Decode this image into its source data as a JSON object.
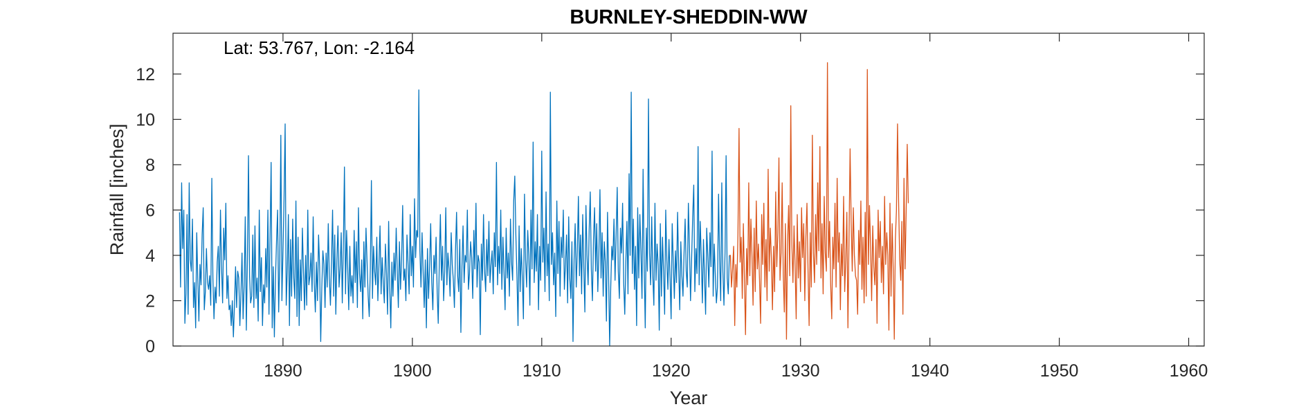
{
  "chart_data": {
    "type": "line",
    "title": "BURNLEY-SHEDDIN-WW",
    "xlabel": "Year",
    "ylabel": "Rainfall [inches]",
    "annotation": "Lat: 53.767, Lon: -2.164",
    "xlim": [
      1881.5,
      1961.2
    ],
    "ylim": [
      0,
      13.8
    ],
    "xticks": [
      1890,
      1900,
      1910,
      1920,
      1930,
      1940,
      1950,
      1960
    ],
    "yticks": [
      0,
      2,
      4,
      6,
      8,
      10,
      12
    ],
    "grid": false,
    "box": true,
    "x_start": 1882.0,
    "x_step": 0.08333,
    "series": [
      {
        "color": "#0072BD",
        "values": [
          5.9,
          2.6,
          7.2,
          4.3,
          6.0,
          1.0,
          2.3,
          5.8,
          1.4,
          7.2,
          3.8,
          3.3,
          5.6,
          1.7,
          2.8,
          0.8,
          5.0,
          2.9,
          1.1,
          3.6,
          2.7,
          4.9,
          6.1,
          1.6,
          2.4,
          4.3,
          2.8,
          2.5,
          3.1,
          1.8,
          7.4,
          3.0,
          1.2,
          2.6,
          1.9,
          3.7,
          4.4,
          2.2,
          6.0,
          3.5,
          1.9,
          5.2,
          3.8,
          6.3,
          2.1,
          3.1,
          1.6,
          1.8,
          0.9,
          2.0,
          0.4,
          1.8,
          3.5,
          1.7,
          3.3,
          3.0,
          0.9,
          2.3,
          4.1,
          1.2,
          2.7,
          5.7,
          0.7,
          3.8,
          8.4,
          3.1,
          1.9,
          2.2,
          4.9,
          1.7,
          5.3,
          2.1,
          3.0,
          1.1,
          6.0,
          2.4,
          3.9,
          0.9,
          2.7,
          1.9,
          4.3,
          2.6,
          6.0,
          1.4,
          4.8,
          8.1,
          0.8,
          3.5,
          0.4,
          2.9,
          4.6,
          6.0,
          1.5,
          3.8,
          9.3,
          2.0,
          4.2,
          6.5,
          9.8,
          1.8,
          3.3,
          5.8,
          0.9,
          4.7,
          2.2,
          5.6,
          3.0,
          2.1,
          6.4,
          1.3,
          4.8,
          0.9,
          3.8,
          2.0,
          5.2,
          3.3,
          1.6,
          4.0,
          1.8,
          6.0,
          2.7,
          3.1,
          4.1,
          2.4,
          5.7,
          2.8,
          1.5,
          3.7,
          2.0,
          4.9,
          3.5,
          0.2,
          2.6,
          4.2,
          3.6,
          1.7,
          4.1,
          2.6,
          5.4,
          3.0,
          1.8,
          3.7,
          6.0,
          2.2,
          4.9,
          1.4,
          3.8,
          5.3,
          2.6,
          3.4,
          5.0,
          1.9,
          4.4,
          7.9,
          2.3,
          5.1,
          3.5,
          1.6,
          4.4,
          2.2,
          3.1,
          1.9,
          5.1,
          2.8,
          4.6,
          1.7,
          6.1,
          3.2,
          2.4,
          3.8,
          1.2,
          4.6,
          2.6,
          5.2,
          3.7,
          2.2,
          1.3,
          3.4,
          7.3,
          2.1,
          4.4,
          3.3,
          2.7,
          4.8,
          2.0,
          3.6,
          5.3,
          2.3,
          3.9,
          2.8,
          1.9,
          4.5,
          3.2,
          1.4,
          5.5,
          2.6,
          0.8,
          3.7,
          2.2,
          4.1,
          2.9,
          5.2,
          3.3,
          1.7,
          4.6,
          2.5,
          3.8,
          6.2,
          2.9,
          3.4,
          2.0,
          4.9,
          3.6,
          2.3,
          5.8,
          3.1,
          4.4,
          2.6,
          6.5,
          3.9,
          5.1,
          4.8,
          11.3,
          4.2,
          2.6,
          5.0,
          3.3,
          1.7,
          3.8,
          0.8,
          4.3,
          2.1,
          3.5,
          5.4,
          2.8,
          1.6,
          4.0,
          3.2,
          4.8,
          2.4,
          1.0,
          3.7,
          5.8,
          2.9,
          4.4,
          2.0,
          3.3,
          6.1,
          2.7,
          4.1,
          3.4,
          2.2,
          5.0,
          3.6,
          2.9,
          1.7,
          4.2,
          5.9,
          3.1,
          2.4,
          4.7,
          0.6,
          3.5,
          5.3,
          2.8,
          4.0,
          3.7,
          6.0,
          2.5,
          3.2,
          4.6,
          3.9,
          2.1,
          5.1,
          3.4,
          6.3,
          2.6,
          4.0,
          3.7,
          0.5,
          4.5,
          2.9,
          5.8,
          3.3,
          2.4,
          4.7,
          3.1,
          5.5,
          2.8,
          3.6,
          4.2,
          2.3,
          5.0,
          3.5,
          8.1,
          2.7,
          4.4,
          3.2,
          6.0,
          2.5,
          4.8,
          3.3,
          1.6,
          5.2,
          3.0,
          4.1,
          2.2,
          5.6,
          3.7,
          2.9,
          6.4,
          7.5,
          4.9,
          3.1,
          0.9,
          5.3,
          2.4,
          4.3,
          3.0,
          1.2,
          6.7,
          3.8,
          2.6,
          5.1,
          4.0,
          1.8,
          6.0,
          3.4,
          9.0,
          2.8,
          4.6,
          3.3,
          5.8,
          1.6,
          4.4,
          2.9,
          8.6,
          3.7,
          5.2,
          2.4,
          6.8,
          3.1,
          4.5,
          2.0,
          11.2,
          3.6,
          5.0,
          2.7,
          4.1,
          1.3,
          6.4,
          3.2,
          5.5,
          2.2,
          4.8,
          3.9,
          6.0,
          2.5,
          3.6,
          4.9,
          1.9,
          5.7,
          3.0,
          2.1,
          4.6,
          0.2,
          3.8,
          5.4,
          2.6,
          4.2,
          6.6,
          3.1,
          4.9,
          2.3,
          5.8,
          3.5,
          1.5,
          6.2,
          4.0,
          2.7,
          5.1,
          6.8,
          3.4,
          2.0,
          4.7,
          6.1,
          3.3,
          5.4,
          2.4,
          4.1,
          6.9,
          3.0,
          5.0,
          2.2,
          4.6,
          3.7,
          1.1,
          5.9,
          3.2,
          0.0,
          2.6,
          4.4,
          3.8,
          5.6,
          2.9,
          4.9,
          7.0,
          3.3,
          2.1,
          5.2,
          4.1,
          6.3,
          2.8,
          1.4,
          3.7,
          5.5,
          2.3,
          7.6,
          4.0,
          11.2,
          3.2,
          5.6,
          2.5,
          4.4,
          0.9,
          6.1,
          3.0,
          5.8,
          4.2,
          2.1,
          7.8,
          3.6,
          0.8,
          5.2,
          3.3,
          10.9,
          4.1,
          2.7,
          5.7,
          3.1,
          1.8,
          6.3,
          2.9,
          4.5,
          3.6,
          0.7,
          5.4,
          2.2,
          4.8,
          3.3,
          1.4,
          6.0,
          3.8,
          2.5,
          4.7,
          3.0,
          1.2,
          5.4,
          3.7,
          2.1,
          4.2,
          2.8,
          5.9,
          3.5,
          1.6,
          4.6,
          3.1,
          2.2,
          4.1,
          5.6,
          3.3,
          2.6,
          6.3,
          4.4,
          2.0,
          3.8,
          5.7,
          7.1,
          2.4,
          4.3,
          3.2,
          8.8,
          2.7,
          5.5,
          3.9,
          1.9,
          4.7,
          3.0,
          1.4,
          5.2,
          4.0,
          2.6,
          5.0,
          3.5,
          8.6,
          2.2,
          4.5,
          3.1,
          1.9,
          2.6,
          6.7,
          3.8,
          2.0,
          7.2,
          3.3,
          1.8,
          4.1,
          8.4,
          3.0,
          2.3,
          4.0
        ]
      },
      {
        "color": "#D95319",
        "values": [
          4.0,
          2.6,
          3.4,
          4.4,
          0.9,
          3.6,
          2.6,
          5.0,
          9.6,
          3.7,
          4.8,
          2.1,
          5.4,
          3.0,
          0.5,
          4.3,
          2.7,
          7.2,
          3.1,
          5.6,
          4.0,
          1.8,
          5.2,
          2.4,
          6.4,
          3.4,
          4.5,
          2.9,
          1.0,
          5.8,
          3.6,
          6.3,
          2.6,
          4.7,
          2.0,
          7.8,
          3.3,
          5.2,
          3.9,
          1.6,
          4.4,
          2.4,
          6.8,
          3.5,
          5.0,
          8.3,
          2.9,
          4.1,
          7.2,
          3.2,
          1.5,
          5.4,
          0.3,
          4.5,
          6.2,
          3.1,
          10.6,
          4.5,
          2.8,
          5.3,
          3.5,
          1.2,
          5.8,
          3.0,
          4.6,
          2.4,
          6.1,
          3.9,
          5.4,
          2.0,
          4.8,
          6.3,
          3.3,
          0.9,
          5.0,
          2.6,
          9.3,
          4.1,
          2.8,
          5.8,
          3.6,
          7.2,
          4.2,
          8.8,
          3.0,
          5.4,
          2.3,
          6.6,
          4.1,
          3.3,
          12.5,
          3.9,
          5.5,
          2.7,
          1.2,
          4.8,
          3.4,
          6.3,
          2.6,
          7.4,
          3.7,
          5.0,
          1.6,
          4.5,
          3.1,
          6.6,
          2.4,
          3.8,
          5.9,
          0.8,
          4.7,
          8.7,
          5.5,
          3.3,
          6.1,
          4.0,
          3.1,
          2.9,
          1.4,
          5.1,
          3.6,
          6.4,
          2.5,
          4.8,
          1.9,
          5.9,
          2.2,
          12.2,
          3.6,
          6.2,
          4.4,
          2.0,
          5.3,
          3.5,
          2.7,
          4.7,
          1.0,
          6.0,
          3.9,
          5.5,
          2.8,
          4.4,
          2.3,
          6.6,
          3.6,
          5.0,
          4.0,
          0.7,
          6.3,
          2.2,
          5.4,
          3.4,
          0.3,
          4.7,
          6.0,
          9.8,
          6.4,
          3.8,
          2.9,
          5.5,
          1.4,
          7.4,
          3.4,
          5.9,
          8.9,
          6.3
        ]
      }
    ]
  }
}
